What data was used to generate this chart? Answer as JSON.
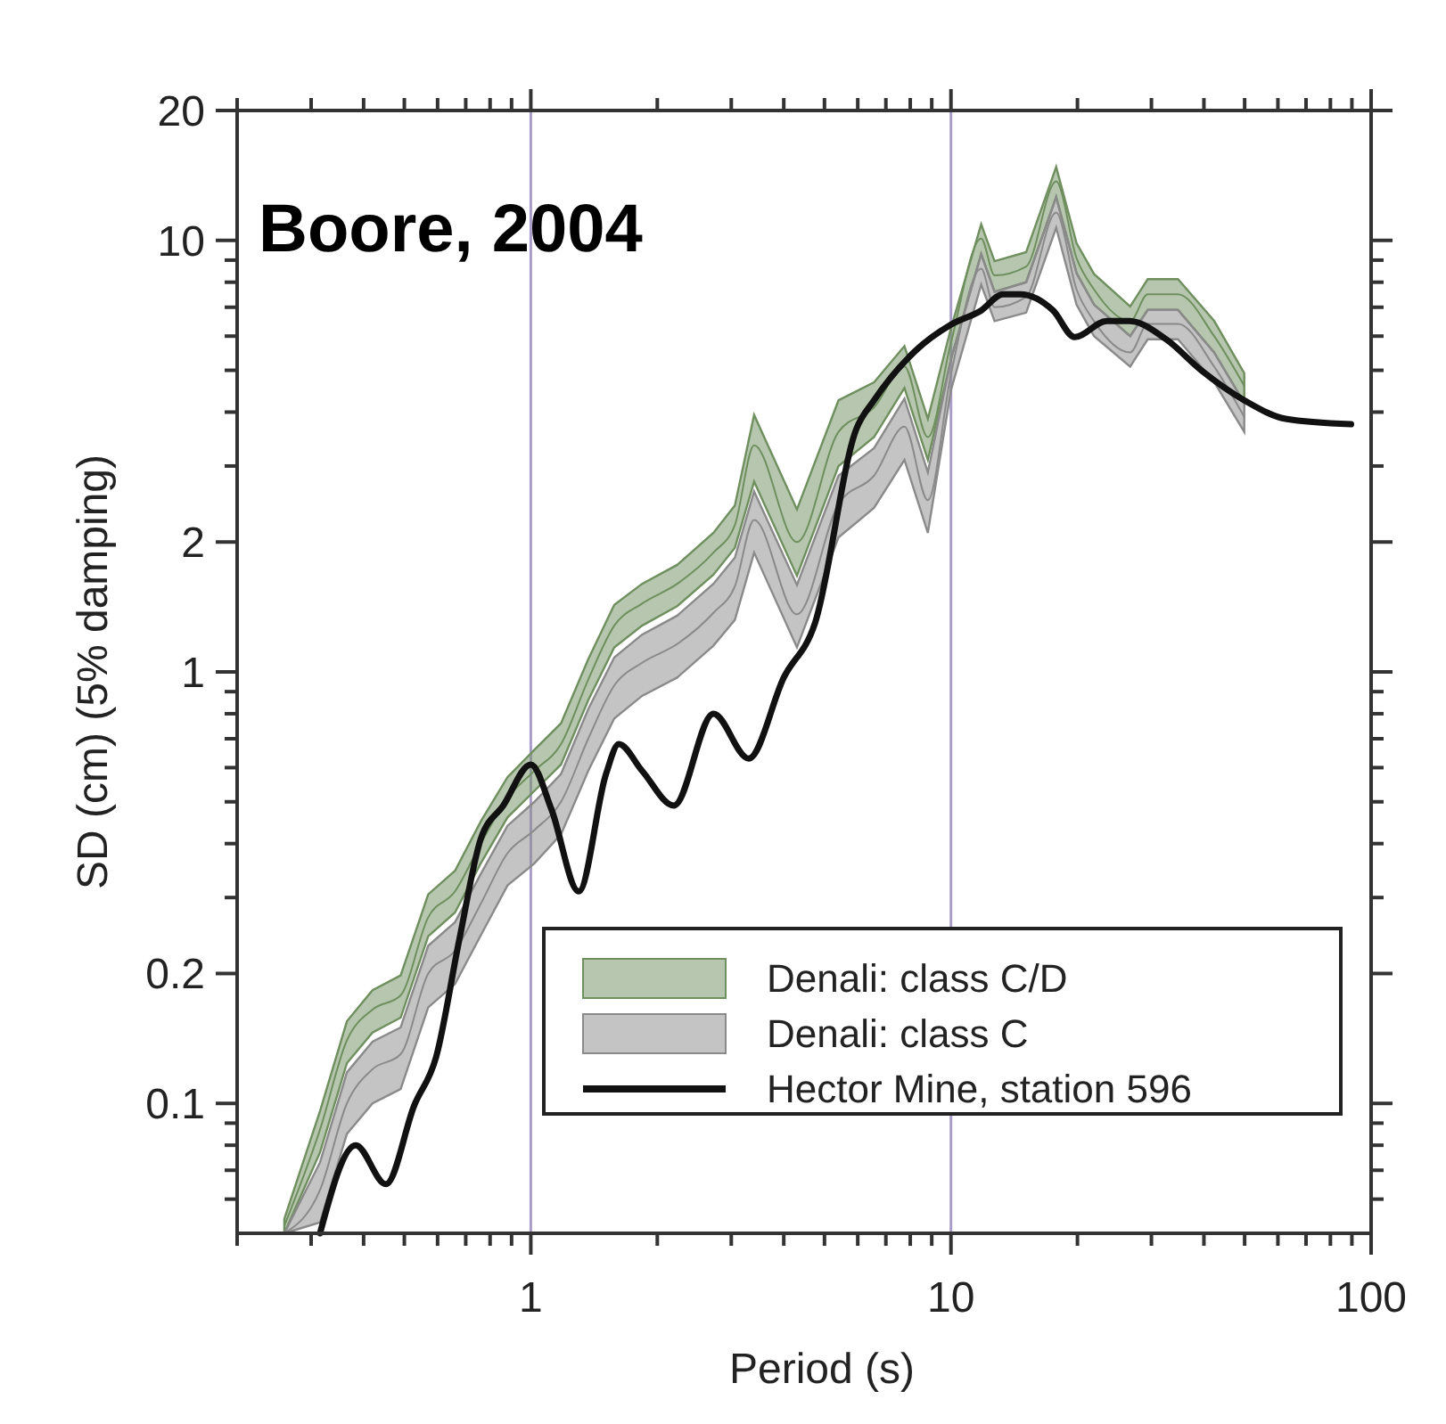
{
  "chart_data": {
    "type": "line",
    "title": "Boore, 2004",
    "xlabel": "Period (s)",
    "ylabel": "SD (cm) (5% damping)",
    "log": "xy",
    "grid": false,
    "legend": "bottom right",
    "marker": "none",
    "line_style": "solid",
    "xlim": [
      0.2,
      100
    ],
    "ylim": [
      0.05,
      20
    ],
    "xticks": [
      {
        "value": 0.2,
        "label": null
      },
      {
        "value": 0.3,
        "label": null
      },
      {
        "value": 0.4,
        "label": null
      },
      {
        "value": 0.5,
        "label": null
      },
      {
        "value": 0.6,
        "label": null
      },
      {
        "value": 0.7,
        "label": null
      },
      {
        "value": 0.8,
        "label": null
      },
      {
        "value": 0.9,
        "label": null
      },
      1,
      {
        "value": 2,
        "label": null
      },
      {
        "value": 3,
        "label": null
      },
      {
        "value": 4,
        "label": null
      },
      {
        "value": 5,
        "label": null
      },
      {
        "value": 6,
        "label": null
      },
      {
        "value": 7,
        "label": null
      },
      {
        "value": 8,
        "label": null
      },
      {
        "value": 9,
        "label": null
      },
      10,
      {
        "value": 20,
        "label": null
      },
      {
        "value": 30,
        "label": null
      },
      {
        "value": 40,
        "label": null
      },
      {
        "value": 50,
        "label": null
      },
      {
        "value": 60,
        "label": null
      },
      {
        "value": 70,
        "label": null
      },
      {
        "value": 80,
        "label": null
      },
      {
        "value": 90,
        "label": null
      },
      100
    ],
    "yticks": [
      {
        "value": 0.06,
        "label": null
      },
      {
        "value": 0.07,
        "label": null
      },
      {
        "value": 0.08,
        "label": null
      },
      {
        "value": 0.09,
        "label": null
      },
      0.1,
      0.2,
      {
        "value": 0.3,
        "label": null
      },
      {
        "value": 0.4,
        "label": null
      },
      {
        "value": 0.5,
        "label": null
      },
      {
        "value": 0.6,
        "label": null
      },
      {
        "value": 0.7,
        "label": null
      },
      {
        "value": 0.8,
        "label": null
      },
      {
        "value": 0.9,
        "label": null
      },
      1,
      2,
      {
        "value": 3,
        "label": null
      },
      {
        "value": 4,
        "label": null
      },
      {
        "value": 5,
        "label": null
      },
      {
        "value": 6,
        "label": null
      },
      {
        "value": 7,
        "label": null
      },
      {
        "value": 8,
        "label": null
      },
      {
        "value": 9,
        "label": null
      },
      10,
      20
    ],
    "ref_lines": [
      {
        "axis": "x",
        "value": 1,
        "color": "#a89cc8"
      },
      {
        "axis": "x",
        "value": 10,
        "color": "#a89cc8"
      }
    ],
    "x": [
      0.259,
      0.315,
      0.365,
      0.42,
      0.49,
      0.57,
      0.66,
      0.76,
      0.88,
      1.02,
      1.18,
      1.37,
      1.58,
      1.84,
      2.23,
      2.72,
      3.06,
      3.4,
      4.3,
      5.4,
      6.56,
      7.75,
      8.81,
      10,
      11.8,
      12.7,
      15.1,
      17.8,
      19.9,
      21.9,
      26.7,
      29.4,
      34.7,
      42.3,
      49.9
    ],
    "series": [
      {
        "name": "Denali: class C/D",
        "color": "#6f8f5f",
        "values": [
          0.052,
          0.087,
          0.14,
          0.165,
          0.178,
          0.27,
          0.31,
          0.4,
          0.51,
          0.59,
          0.68,
          0.96,
          1.28,
          1.44,
          1.6,
          1.89,
          2.19,
          3.35,
          2.0,
          3.6,
          4.1,
          5.1,
          3.5,
          5.8,
          10.1,
          8.3,
          8.7,
          13.7,
          9.1,
          7.7,
          6.5,
          7.5,
          7.5,
          6.0,
          4.6
        ],
        "lower": [
          0.05,
          0.077,
          0.124,
          0.146,
          0.158,
          0.244,
          0.277,
          0.36,
          0.46,
          0.53,
          0.61,
          0.86,
          1.14,
          1.28,
          1.42,
          1.68,
          1.94,
          2.76,
          1.67,
          3.0,
          3.5,
          4.55,
          3.1,
          5.3,
          9.3,
          7.6,
          8.0,
          12.6,
          8.4,
          7.1,
          6.0,
          6.9,
          6.9,
          5.5,
          4.2
        ],
        "upper": [
          0.054,
          0.096,
          0.155,
          0.183,
          0.198,
          0.305,
          0.346,
          0.45,
          0.57,
          0.66,
          0.76,
          1.07,
          1.43,
          1.6,
          1.77,
          2.1,
          2.43,
          3.94,
          2.38,
          4.26,
          4.69,
          5.69,
          3.86,
          6.26,
          10.9,
          8.95,
          9.39,
          14.8,
          9.86,
          8.36,
          7.03,
          8.13,
          8.13,
          6.51,
          4.92
        ]
      },
      {
        "name": "Denali: class C",
        "color": "#8a8a8a",
        "values": [
          0.05,
          0.063,
          0.1,
          0.12,
          0.13,
          0.2,
          0.226,
          0.29,
          0.38,
          0.43,
          0.5,
          0.7,
          0.93,
          1.05,
          1.16,
          1.37,
          1.58,
          2.25,
          1.36,
          2.45,
          2.85,
          3.7,
          2.5,
          4.9,
          8.6,
          7.0,
          7.4,
          11.6,
          7.7,
          6.5,
          5.5,
          6.4,
          6.4,
          5.1,
          3.9
        ],
        "lower": [
          0.05,
          0.053,
          0.085,
          0.1,
          0.108,
          0.167,
          0.189,
          0.245,
          0.32,
          0.36,
          0.42,
          0.59,
          0.78,
          0.88,
          0.97,
          1.15,
          1.32,
          1.89,
          1.14,
          2.05,
          2.4,
          3.1,
          2.1,
          4.5,
          7.9,
          6.5,
          6.8,
          10.7,
          7.1,
          6.0,
          5.1,
          5.9,
          5.9,
          4.7,
          3.6
        ],
        "upper": [
          0.05,
          0.073,
          0.118,
          0.139,
          0.15,
          0.232,
          0.263,
          0.34,
          0.44,
          0.5,
          0.58,
          0.82,
          1.08,
          1.22,
          1.35,
          1.6,
          1.84,
          2.62,
          1.59,
          2.85,
          3.3,
          4.3,
          2.9,
          5.3,
          9.3,
          7.6,
          8.0,
          12.6,
          8.4,
          7.1,
          6.0,
          6.9,
          6.9,
          5.5,
          4.2
        ]
      },
      {
        "name": "Hector Mine, station 596",
        "color": "#111111",
        "x": [
          0.315,
          0.383,
          0.452,
          0.528,
          0.595,
          0.676,
          0.76,
          0.86,
          1.0,
          1.12,
          1.3,
          1.51,
          1.62,
          1.84,
          2.19,
          2.72,
          3.3,
          4.0,
          4.75,
          5.95,
          6.56,
          8.2,
          10,
          11.8,
          13.3,
          14.6,
          17.5,
          19.7,
          23.5,
          26.6,
          32.5,
          39.4,
          49.9,
          62.6,
          89.6
        ],
        "values": [
          0.05,
          0.08,
          0.065,
          0.099,
          0.128,
          0.24,
          0.41,
          0.49,
          0.61,
          0.48,
          0.31,
          0.58,
          0.68,
          0.59,
          0.49,
          0.8,
          0.63,
          0.97,
          1.3,
          3.65,
          4.26,
          5.53,
          6.38,
          6.88,
          7.5,
          7.5,
          6.88,
          5.97,
          6.5,
          6.5,
          5.9,
          5.0,
          4.26,
          3.86,
          3.75
        ]
      }
    ]
  }
}
